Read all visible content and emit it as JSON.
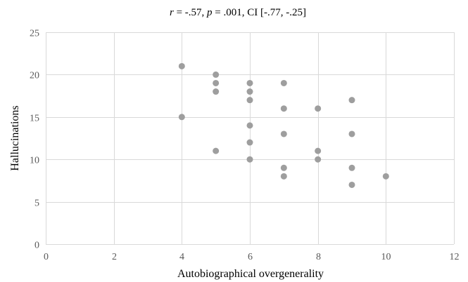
{
  "chart_data": {
    "type": "scatter",
    "title_parts": [
      {
        "text": "r",
        "italic": true
      },
      {
        "text": " = -.57, ",
        "italic": false
      },
      {
        "text": "p",
        "italic": true
      },
      {
        "text": " = .001, CI [-.77, -.25]",
        "italic": false
      }
    ],
    "xlabel": "Autobiographical overgenerality",
    "ylabel": "Hallucinations",
    "xlim": [
      0,
      12
    ],
    "ylim": [
      0,
      25
    ],
    "xticks": [
      0,
      2,
      4,
      6,
      8,
      10,
      12
    ],
    "yticks": [
      0,
      5,
      10,
      15,
      20,
      25
    ],
    "grid": true,
    "point_color": "#9e9e9e",
    "grid_color": "#d9d9d9",
    "points": [
      {
        "x": 4,
        "y": 21
      },
      {
        "x": 4,
        "y": 15
      },
      {
        "x": 5,
        "y": 20
      },
      {
        "x": 5,
        "y": 19
      },
      {
        "x": 5,
        "y": 18
      },
      {
        "x": 5,
        "y": 11
      },
      {
        "x": 6,
        "y": 19
      },
      {
        "x": 6,
        "y": 18
      },
      {
        "x": 6,
        "y": 17
      },
      {
        "x": 6,
        "y": 14
      },
      {
        "x": 6,
        "y": 12
      },
      {
        "x": 6,
        "y": 10
      },
      {
        "x": 7,
        "y": 19
      },
      {
        "x": 7,
        "y": 16
      },
      {
        "x": 7,
        "y": 13
      },
      {
        "x": 7,
        "y": 9
      },
      {
        "x": 7,
        "y": 8
      },
      {
        "x": 8,
        "y": 16
      },
      {
        "x": 8,
        "y": 11
      },
      {
        "x": 8,
        "y": 10
      },
      {
        "x": 9,
        "y": 17
      },
      {
        "x": 9,
        "y": 13
      },
      {
        "x": 9,
        "y": 9
      },
      {
        "x": 9,
        "y": 7
      },
      {
        "x": 10,
        "y": 8
      }
    ]
  }
}
